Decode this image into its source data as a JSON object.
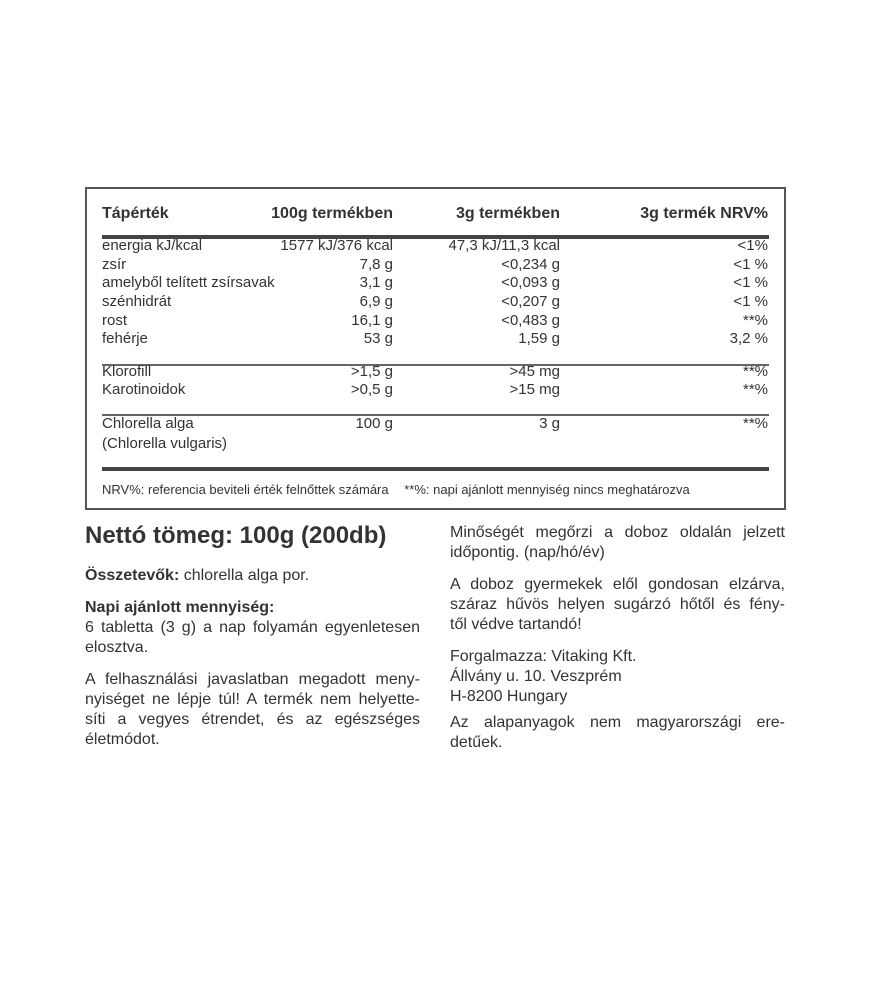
{
  "table": {
    "headers": [
      "Tápérték",
      "100g termékben",
      "3g termékben",
      "3g termék NRV%"
    ],
    "group1": [
      [
        "energia kJ/kcal",
        "1577 kJ/376 kcal",
        "47,3 kJ/11,3 kcal",
        "<1%"
      ],
      [
        "zsír",
        "7,8 g",
        "<0,234 g",
        "<1 %"
      ],
      [
        "amelyből telített zsírsavak",
        "3,1 g",
        "<0,093 g",
        "<1 %"
      ],
      [
        "szénhidrát",
        "6,9 g",
        "<0,207 g",
        "<1 %"
      ],
      [
        "rost",
        "16,1 g",
        "<0,483 g",
        "**%"
      ],
      [
        "fehérje",
        "53 g",
        "1,59 g",
        "3,2 %"
      ]
    ],
    "group2": [
      [
        "Klorofill",
        ">1,5 g",
        ">45 mg",
        "**%"
      ],
      [
        "Karotinoidok",
        ">0,5 g",
        ">15 mg",
        "**%"
      ]
    ],
    "group3": [
      [
        "Chlorella alga",
        "100 g",
        "3 g",
        "**%"
      ],
      [
        "(Chlorella vulgaris)",
        "",
        "",
        ""
      ]
    ],
    "footnote_nrv": "NRV%: referencia beviteli érték felnőttek számára",
    "footnote_stars": "**%: napi ajánlott mennyiség nincs meghatározva"
  },
  "net_weight": "Nettó tömeg: 100g (200db)",
  "left": {
    "ingredients_label": "Összetevők:",
    "ingredients_value": " chlorella alga por.",
    "dose_label": "Napi ajánlott mennyiség:",
    "dose_lines": [
      "6 tabletta (3 g) a nap folyamán egyenletesen",
      "elosztva."
    ],
    "warning_lines": [
      "A felhasználási javaslatban megadott meny-",
      "nyiséget ne lépje túl! A termék nem helyette-",
      "síti a vegyes étrendet, és az egészséges",
      "életmódot."
    ]
  },
  "right": {
    "best_before_lines": [
      "Minőségét megőrzi a doboz oldalán jelzett",
      "időpontig. (nap/hó/év)"
    ],
    "storage_lines": [
      "A doboz gyermekek elől gondosan elzárva,",
      "száraz hűvös helyen sugárzó hőtől és fény-",
      "től védve tartandó!"
    ],
    "distributor_lines": [
      "Forgalmazza: Vitaking Kft.",
      "Állvány u. 10.  Veszprém",
      "H-8200 Hungary"
    ],
    "origin_lines": [
      "Az alapanyagok nem magyarországi ere-",
      "detűek."
    ]
  }
}
